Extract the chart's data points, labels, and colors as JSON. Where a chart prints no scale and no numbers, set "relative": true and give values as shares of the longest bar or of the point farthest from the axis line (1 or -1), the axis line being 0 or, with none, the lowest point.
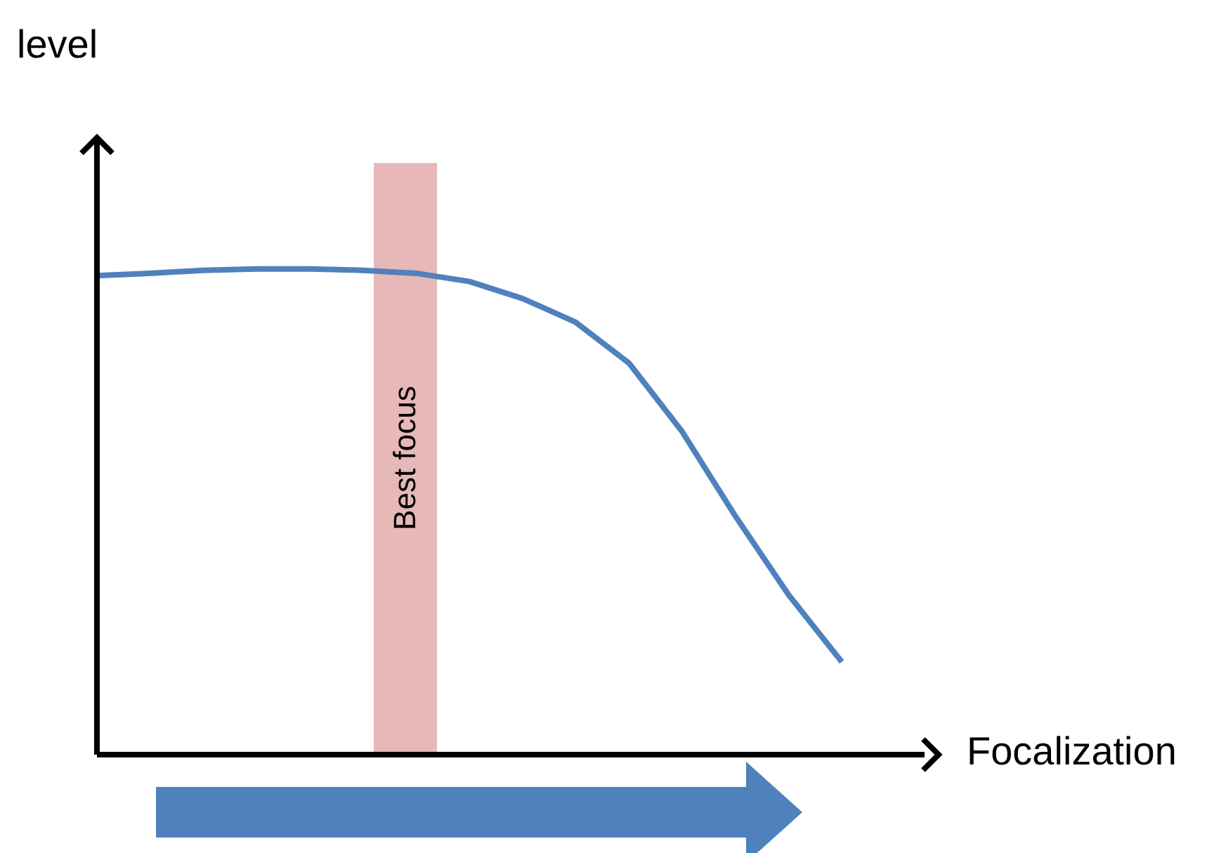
{
  "chart_data": {
    "type": "line",
    "relative": true,
    "xlabel": "Focalization",
    "grid": false,
    "legend": false,
    "marker": "none",
    "line_style": "solid",
    "annotations": [
      "level",
      "Best focus"
    ],
    "categories": [
      null,
      null,
      null,
      null,
      null,
      null,
      null,
      null,
      null,
      null,
      null,
      null,
      null,
      null,
      null
    ],
    "series": [
      {
        "color": "#4f81bd",
        "values": [
          0.986,
          0.991,
          0.997,
          1,
          1,
          0.997,
          0.991,
          0.974,
          0.939,
          0.89,
          0.806,
          0.665,
          0.491,
          0.329,
          0.191
        ]
      }
    ]
  }
}
